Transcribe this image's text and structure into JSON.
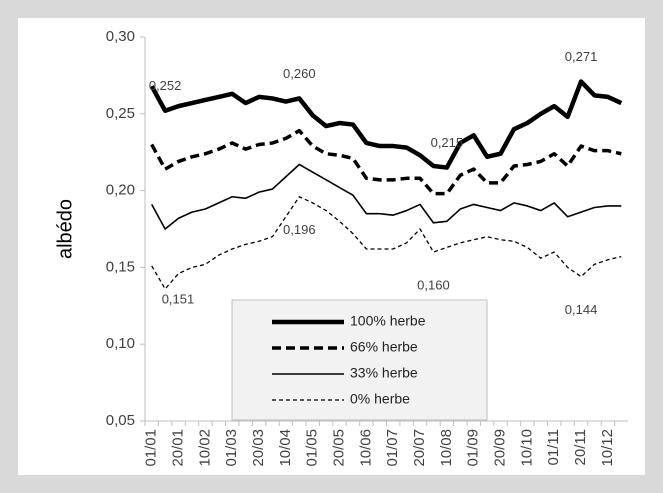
{
  "chart_data": {
    "type": "line",
    "y_label": "albédo",
    "categories": [
      "01/01",
      null,
      "20/01",
      null,
      "10/02",
      null,
      "01/03",
      null,
      "20/03",
      null,
      "10/04",
      null,
      "01/05",
      null,
      "20/05",
      null,
      "10/06",
      null,
      "01/07",
      null,
      "20/07",
      null,
      "10/08",
      null,
      "01/09",
      null,
      "20/09",
      null,
      "10/10",
      null,
      "01/11",
      null,
      "20/11",
      null,
      "10/12",
      null
    ],
    "series": [
      {
        "name": "100% herbe",
        "color": "#000000",
        "style": "solid",
        "width": 4.5,
        "values": [
          0.268,
          0.252,
          0.255,
          0.257,
          0.259,
          0.261,
          0.263,
          0.257,
          0.261,
          0.26,
          0.258,
          0.26,
          0.249,
          0.242,
          0.244,
          0.243,
          0.231,
          0.229,
          0.229,
          0.228,
          0.223,
          0.216,
          0.215,
          0.231,
          0.236,
          0.222,
          0.224,
          0.24,
          0.244,
          0.25,
          0.255,
          0.248,
          0.271,
          0.262,
          0.261,
          0.257
        ],
        "value_labels": [
          null,
          "0,252",
          null,
          null,
          null,
          null,
          null,
          null,
          null,
          null,
          null,
          "0,260",
          null,
          null,
          null,
          null,
          null,
          null,
          null,
          null,
          null,
          null,
          "0,215",
          null,
          null,
          null,
          null,
          null,
          null,
          null,
          null,
          null,
          "0,271",
          null,
          null,
          null
        ]
      },
      {
        "name": "66% herbe",
        "color": "#000000",
        "style": "dashed",
        "width": 3.5,
        "values": [
          0.23,
          0.214,
          0.219,
          0.222,
          0.224,
          0.227,
          0.231,
          0.227,
          0.23,
          0.231,
          0.234,
          0.239,
          0.229,
          0.224,
          0.223,
          0.221,
          0.208,
          0.207,
          0.207,
          0.208,
          0.208,
          0.198,
          0.198,
          0.21,
          0.214,
          0.205,
          0.205,
          0.216,
          0.217,
          0.219,
          0.224,
          0.216,
          0.229,
          0.226,
          0.226,
          0.224
        ]
      },
      {
        "name": "33% herbe",
        "color": "#000000",
        "style": "solid",
        "width": 1.6,
        "values": [
          0.191,
          0.175,
          0.182,
          0.186,
          0.188,
          0.192,
          0.196,
          0.195,
          0.199,
          0.201,
          0.209,
          0.217,
          0.212,
          0.207,
          0.202,
          0.197,
          0.185,
          0.185,
          0.184,
          0.187,
          0.191,
          0.179,
          0.18,
          0.188,
          0.191,
          0.189,
          0.187,
          0.192,
          0.19,
          0.187,
          0.192,
          0.183,
          0.186,
          0.189,
          0.19,
          0.19
        ]
      },
      {
        "name": "0% herbe",
        "color": "#000000",
        "style": "dotted",
        "width": 1.3,
        "values": [
          0.151,
          0.136,
          0.146,
          0.15,
          0.152,
          0.158,
          0.162,
          0.165,
          0.167,
          0.17,
          0.183,
          0.196,
          0.192,
          0.187,
          0.18,
          0.172,
          0.162,
          0.162,
          0.162,
          0.166,
          0.175,
          0.16,
          0.163,
          0.166,
          0.168,
          0.17,
          0.168,
          0.167,
          0.163,
          0.156,
          0.16,
          0.15,
          0.144,
          0.152,
          0.155,
          0.157
        ],
        "value_labels": [
          "0,151",
          null,
          null,
          null,
          null,
          null,
          null,
          null,
          null,
          null,
          null,
          "0,196",
          null,
          null,
          null,
          null,
          null,
          null,
          null,
          null,
          null,
          "0,160",
          null,
          null,
          null,
          null,
          null,
          null,
          null,
          null,
          null,
          null,
          "0,144",
          null,
          null,
          null
        ]
      }
    ],
    "ylim": [
      0.05,
      0.3
    ],
    "yticks": [
      {
        "value": 0.05,
        "label": "0,05"
      },
      {
        "value": 0.1,
        "label": "0,10"
      },
      {
        "value": 0.15,
        "label": "0,15"
      },
      {
        "value": 0.2,
        "label": "0,20"
      },
      {
        "value": 0.25,
        "label": "0,25"
      },
      {
        "value": 0.3,
        "label": "0,30"
      }
    ],
    "grid": false,
    "legend": "bottom-center"
  }
}
